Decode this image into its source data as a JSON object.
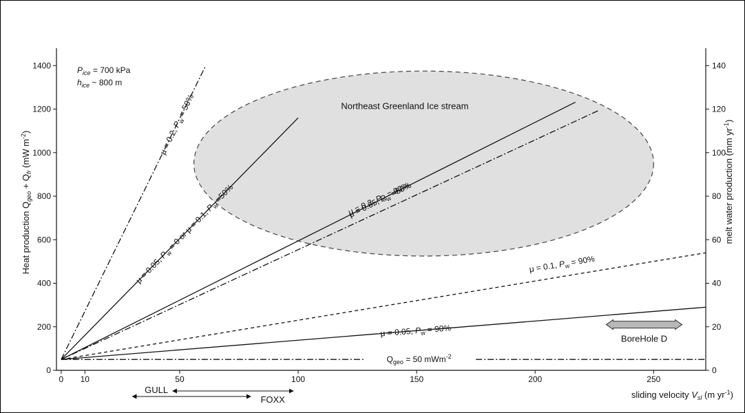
{
  "chart_data": {
    "type": "line",
    "annotations": {
      "pressure_lines": [
        "P_ice = 700 kPa",
        "h_ice ~ 800 m"
      ],
      "region_label": "Northeast Greenland  Ice stream",
      "borehole_label": "BoreHole D",
      "gull_label": "GULL",
      "foxx_label": "FOXX",
      "qgeo_label": "Q_geo = 50 mWm^-2"
    },
    "xlabel": "sliding velocity V_sl (m yr^-1)",
    "ylabel": "Heat production Q_geo + Q_fr  (mW m^-2)",
    "y2label": "melt water production  (mm yr^-1)",
    "xlim": [
      -2,
      272
    ],
    "ylim": [
      0,
      1480
    ],
    "y2lim": [
      0,
      148
    ],
    "x_ticks": [
      0,
      10,
      50,
      100,
      150,
      200,
      250
    ],
    "y_ticks": [
      0,
      200,
      400,
      600,
      800,
      1000,
      1200,
      1400
    ],
    "y2_ticks": [
      0,
      20,
      40,
      60,
      80,
      100,
      120,
      140
    ],
    "ellipse_region": {
      "x_center": 153,
      "y_center": 950,
      "x_radius": 97,
      "y_radius": 425
    },
    "series": [
      {
        "name": "μ = 0.2, P_w = 50%",
        "style": "dashdot",
        "x": [
          0,
          61
        ],
        "y": [
          50,
          1400
        ]
      },
      {
        "name": "μ = 0.05, P_w = 0 or μ = 0.1, P_w =50%",
        "style": "solid",
        "x": [
          0,
          100
        ],
        "y": [
          50,
          1160
        ]
      },
      {
        "name": "μ = 0.05, P_w =50%",
        "style": "solid",
        "x": [
          0,
          217
        ],
        "y": [
          50,
          1232
        ]
      },
      {
        "name": "μ = 0.2, P_w = 90%",
        "style": "dashdot",
        "x": [
          0,
          227
        ],
        "y": [
          50,
          1195
        ]
      },
      {
        "name": "μ = 0.1, P_w = 90%",
        "style": "dashed",
        "x": [
          0,
          272
        ],
        "y": [
          50,
          540
        ]
      },
      {
        "name": "μ = 0.05, P_w = 90%",
        "style": "solid",
        "x": [
          0,
          272
        ],
        "y": [
          50,
          290
        ]
      },
      {
        "name": "Q_geo = 50 mWm^-2",
        "style": "dashdot",
        "x": [
          0,
          272
        ],
        "y": [
          50,
          50
        ]
      }
    ],
    "ranges": [
      {
        "name": "GULL",
        "x": [
          30,
          80
        ]
      },
      {
        "name": "FOXX",
        "x": [
          47,
          98
        ]
      },
      {
        "name": "BoreHole D",
        "x": [
          230,
          262
        ],
        "y": 210
      }
    ]
  }
}
